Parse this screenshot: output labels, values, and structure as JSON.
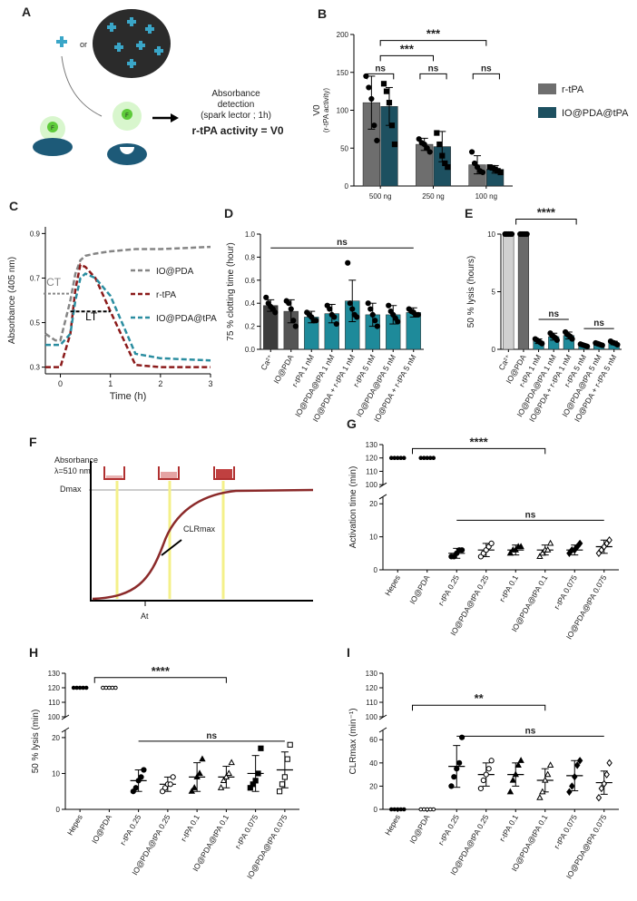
{
  "diagram_a": {
    "label": "A",
    "or": "or",
    "icon": "F",
    "detection": "Absorbance",
    "detection_2": "detection",
    "detection_sub": "(spark lector ; 1h)",
    "result": "r-tPA activity  = V0"
  },
  "diagram_f": {
    "label": "F",
    "ylabel": "Absorbance",
    "wavelength": "λ=510 nm",
    "dmax": "Dmax",
    "clr": "CLRmax",
    "at": "At"
  },
  "chart_data": [
    {
      "type": "bar",
      "panel": "B",
      "ylabel": "V0",
      "ylabel_sub": "(r-tPA activity)",
      "categories": [
        "500 ng",
        "250 ng",
        "100 ng"
      ],
      "series": [
        {
          "name": "r-tPA",
          "color": "#6e6e6e",
          "marker": "circle",
          "values": [
            110,
            55,
            28
          ],
          "errors": [
            35,
            8,
            12
          ],
          "points": [
            [
              145,
              130,
              115,
              80,
              60
            ],
            [
              62,
              57,
              55,
              50,
              45
            ],
            [
              45,
              30,
              25,
              20,
              18
            ]
          ]
        },
        {
          "name": "IO@PDA@tPA",
          "color": "#1d5060",
          "marker": "square",
          "values": [
            105,
            52,
            22
          ],
          "errors": [
            25,
            20,
            5
          ],
          "points": [
            [
              135,
              125,
              110,
              80,
              55
            ],
            [
              70,
              55,
              40,
              30,
              25
            ],
            [
              25,
              24,
              22,
              20,
              18
            ]
          ]
        }
      ],
      "ylim": [
        0,
        200
      ],
      "yticks": [
        0,
        50,
        100,
        150,
        200
      ],
      "legend": "right",
      "annotations": [
        "***",
        "***",
        "ns",
        "ns",
        "ns"
      ]
    },
    {
      "type": "line",
      "panel": "C",
      "ylabel": "Absorbance (405 nm)",
      "xlabel": "Time (h)",
      "x": [
        -0.3,
        -0.1,
        0,
        0.2,
        0.3,
        0.4,
        0.5,
        0.7,
        1,
        1.5,
        2,
        3
      ],
      "series": [
        {
          "name": "IO@PDA",
          "color": "#858585",
          "values": [
            0.45,
            0.42,
            0.42,
            0.6,
            0.72,
            0.78,
            0.8,
            0.81,
            0.82,
            0.83,
            0.83,
            0.84
          ]
        },
        {
          "name": "r-tPA",
          "color": "#8b1a1a",
          "values": [
            0.3,
            0.3,
            0.3,
            0.45,
            0.65,
            0.76,
            0.75,
            0.7,
            0.55,
            0.31,
            0.3,
            0.3
          ]
        },
        {
          "name": "IO@PDA@tPA",
          "color": "#2a8da0",
          "values": [
            0.4,
            0.4,
            0.4,
            0.45,
            0.6,
            0.7,
            0.72,
            0.7,
            0.62,
            0.36,
            0.34,
            0.33
          ]
        }
      ],
      "xlim": [
        -0.3,
        3
      ],
      "xticks": [
        0,
        1,
        2,
        3
      ],
      "ylim": [
        0.27,
        0.93
      ],
      "yticks": [
        0.3,
        0.5,
        0.7,
        0.9
      ],
      "legend": "right",
      "annotations": [
        "CT",
        "LT"
      ]
    },
    {
      "type": "bar",
      "panel": "D",
      "ylabel": "75 % clotting time (hour)",
      "categories": [
        "Ca²⁺",
        "IO@PDA",
        "r-tPA 1 nM",
        "IO@PDA@tPA 1 nM",
        "IO@PDA + r-tPA 1 nM",
        "r-tPA 5 nM",
        "IO@PDA@tPA 5 nM",
        "IO@PDA + r-tPA 5 nM"
      ],
      "values": [
        0.38,
        0.33,
        0.28,
        0.31,
        0.42,
        0.3,
        0.3,
        0.32
      ],
      "errors": [
        0.05,
        0.1,
        0.05,
        0.08,
        0.18,
        0.1,
        0.08,
        0.04
      ],
      "points": [
        [
          0.45,
          0.4,
          0.37,
          0.35,
          0.32
        ],
        [
          0.42,
          0.4,
          0.35,
          0.25,
          0.2
        ],
        [
          0.32,
          0.3,
          0.28,
          0.25,
          0.25
        ],
        [
          0.38,
          0.35,
          0.3,
          0.28,
          0.22
        ],
        [
          0.75,
          0.4,
          0.35,
          0.3,
          0.28
        ],
        [
          0.4,
          0.35,
          0.3,
          0.25,
          0.2
        ],
        [
          0.38,
          0.33,
          0.3,
          0.27,
          0.24
        ],
        [
          0.35,
          0.33,
          0.32,
          0.3,
          0.3
        ]
      ],
      "colors": [
        "#3c3c3c",
        "#555555",
        "#1e8a9a",
        "#1e8a9a",
        "#1e8a9a",
        "#1e8a9a",
        "#1e8a9a",
        "#1e8a9a"
      ],
      "ylim": [
        0,
        1
      ],
      "yticks": [
        {
          "value": 0,
          "label": "0.0"
        },
        0.2,
        0.4,
        0.6,
        0.8,
        {
          "value": 1,
          "label": "1.0"
        }
      ],
      "annotations": [
        "ns"
      ]
    },
    {
      "type": "bar",
      "panel": "E",
      "ylabel": "50 % lysis (hours)",
      "categories": [
        "Ca²⁺",
        "IO@PDA",
        "r-tPA 1 nM",
        "IO@PDA@tPA 1 nM",
        "IO@PDA + r-tPA 1 nM",
        "r-tPA 5 nM",
        "IO@PDA@tPA 5 nM",
        "IO@PDA + r-tPA 5 nM"
      ],
      "values": [
        10,
        10,
        0.7,
        1.1,
        1.2,
        0.35,
        0.45,
        0.55
      ],
      "errors": [
        0,
        0,
        0.2,
        0.3,
        0.3,
        0.1,
        0.1,
        0.15
      ],
      "points": [
        [
          10,
          10,
          10,
          10,
          10
        ],
        [
          10,
          10,
          10,
          10,
          10
        ],
        [
          0.9,
          0.8,
          0.7,
          0.6,
          0.5
        ],
        [
          1.4,
          1.2,
          1.1,
          1,
          0.8
        ],
        [
          1.5,
          1.3,
          1.2,
          1.1,
          0.9
        ],
        [
          0.45,
          0.4,
          0.35,
          0.3,
          0.25
        ],
        [
          0.55,
          0.5,
          0.45,
          0.4,
          0.35
        ],
        [
          0.7,
          0.6,
          0.55,
          0.5,
          0.4
        ]
      ],
      "colors": [
        "#d0d0d0",
        "#6a6a6a",
        "#1e8a9a",
        "#1e8a9a",
        "#1e8a9a",
        "#1e8a9a",
        "#1e8a9a",
        "#1e8a9a"
      ],
      "ylim": [
        0,
        10
      ],
      "yticks": [
        0,
        5,
        10
      ],
      "annotations": [
        "****",
        "ns",
        "ns"
      ]
    },
    {
      "type": "dot",
      "panel": "G",
      "ylabel": "Activation time (min)",
      "categories": [
        "Hepes",
        "IO@PDA",
        "r-tPA 0.25",
        "IO@PDA@tPA 0.25",
        "r-tPA 0.1",
        "IO@PDA@tPA 0.1",
        "r-tPA 0.075",
        "IO@PDA@tPA 0.075"
      ],
      "values": [
        120,
        120,
        5,
        6,
        6,
        6,
        6,
        7
      ],
      "errors": [
        0,
        0,
        1.5,
        2,
        1.5,
        1.5,
        1.5,
        2
      ],
      "points": [
        [
          120,
          120,
          120,
          120,
          120
        ],
        [
          120,
          120,
          120,
          120,
          120
        ],
        [
          4,
          4,
          5,
          6,
          6
        ],
        [
          4,
          5,
          6,
          7,
          8
        ],
        [
          5,
          6,
          6,
          7,
          7
        ],
        [
          4,
          5,
          6,
          6,
          8
        ],
        [
          5,
          6,
          6,
          7,
          8
        ],
        [
          5,
          6,
          7,
          8,
          9
        ]
      ],
      "markers": [
        "circle",
        "circle",
        "circle",
        "circle-open",
        "triangle",
        "triangle-open",
        "diamond",
        "diamond-open"
      ],
      "ylim": [
        0,
        130
      ],
      "ybreak": [
        22,
        100
      ],
      "yticks": [
        0,
        10,
        20,
        100,
        110,
        120,
        130
      ],
      "annotations": [
        "****",
        "ns"
      ]
    },
    {
      "type": "dot",
      "panel": "H",
      "ylabel": "50 % lysis (min)",
      "categories": [
        "Hepes",
        "IO@PDA",
        "r-tPA 0.25",
        "IO@PDA@tPA 0.25",
        "r-tPA 0.1",
        "IO@PDA@tPA 0.1",
        "r-tPA 0.075",
        "IO@PDA@tPA 0.075"
      ],
      "values": [
        120,
        120,
        8,
        7,
        9,
        9,
        10,
        11
      ],
      "errors": [
        0,
        0,
        3,
        2,
        4,
        3,
        5,
        5
      ],
      "points": [
        [
          120,
          120,
          120,
          120,
          120
        ],
        [
          120,
          120,
          120,
          120,
          120
        ],
        [
          5,
          6,
          8,
          9,
          11
        ],
        [
          5,
          6,
          7,
          7,
          9
        ],
        [
          5,
          6,
          9,
          10,
          14
        ],
        [
          6,
          8,
          9,
          10,
          13
        ],
        [
          6,
          7,
          8,
          10,
          17
        ],
        [
          5,
          7,
          9,
          14,
          18
        ]
      ],
      "markers": [
        "circle",
        "circle-open",
        "circle",
        "circle-open",
        "triangle",
        "triangle-open",
        "square",
        "square-open"
      ],
      "ylim": [
        0,
        130
      ],
      "ybreak": [
        22,
        100
      ],
      "yticks": [
        0,
        10,
        20,
        100,
        110,
        120,
        130
      ],
      "annotations": [
        "****",
        "ns"
      ]
    },
    {
      "type": "dot",
      "panel": "I",
      "ylabel": "CLRmax (min⁻¹)",
      "categories": [
        "Hepes",
        "IO@PDA",
        "r-tPA 0.25",
        "IO@PDA@tPA 0.25",
        "r-tPA 0.1",
        "IO@PDA@tPA 0.1",
        "r-tPA 0.075",
        "IO@PDA@tPA 0.075"
      ],
      "values": [
        0,
        0,
        37,
        30,
        30,
        25,
        29,
        23
      ],
      "errors": [
        0,
        0,
        18,
        10,
        10,
        10,
        13,
        10
      ],
      "points": [
        [
          0,
          0,
          0,
          0,
          0
        ],
        [
          0,
          0,
          0,
          0,
          0
        ],
        [
          20,
          28,
          35,
          40,
          62
        ],
        [
          18,
          25,
          30,
          35,
          42
        ],
        [
          15,
          25,
          30,
          38,
          42
        ],
        [
          10,
          15,
          25,
          30,
          38
        ],
        [
          15,
          20,
          28,
          38,
          42
        ],
        [
          10,
          18,
          22,
          30,
          40
        ]
      ],
      "markers": [
        "circle",
        "circle-open",
        "circle",
        "circle-open",
        "triangle",
        "triangle-open",
        "diamond",
        "diamond-open"
      ],
      "ylim": [
        0,
        130
      ],
      "ybreak": [
        68,
        100
      ],
      "yticks": [
        0,
        20,
        40,
        60,
        100,
        110,
        120,
        130
      ],
      "annotations": [
        "**",
        "ns"
      ]
    }
  ]
}
